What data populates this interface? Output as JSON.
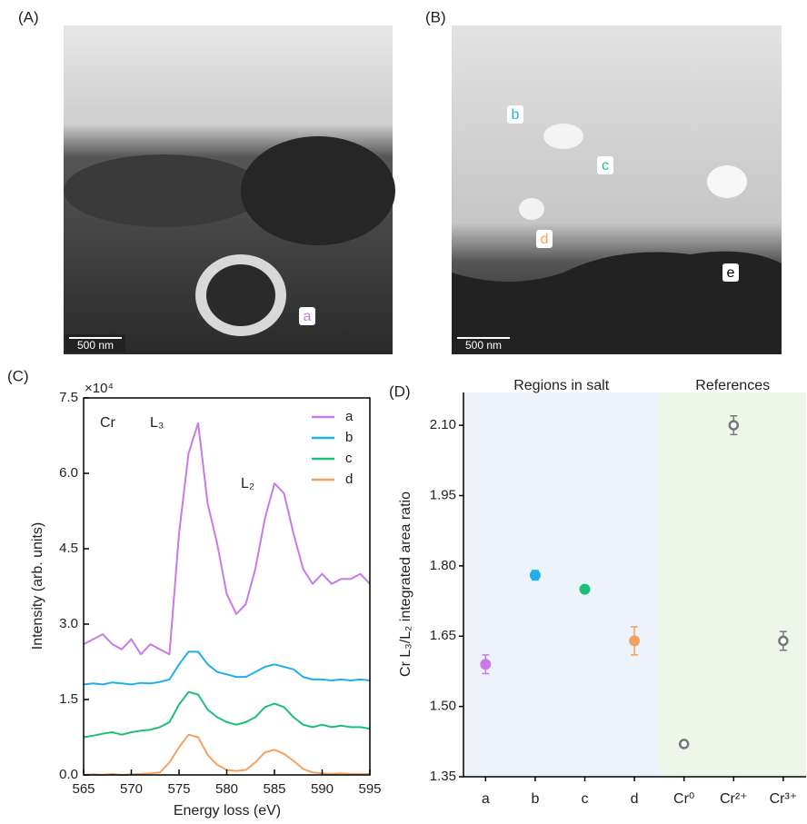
{
  "panels": {
    "A": {
      "label": "(A)",
      "scale_bar": "500 nm",
      "regions": [
        "a"
      ]
    },
    "B": {
      "label": "(B)",
      "scale_bar": "500 nm",
      "regions": [
        "b",
        "c",
        "d",
        "e"
      ]
    }
  },
  "chart_data": [
    {
      "type": "line",
      "panel_label": "(C)",
      "multiplier": "×10⁴",
      "xlabel": "Energy loss (eV)",
      "ylabel": "Intensity (arb. units)",
      "annotations": [
        "Cr",
        "L₃",
        "L₂"
      ],
      "x": [
        565,
        566,
        567,
        568,
        569,
        570,
        571,
        572,
        573,
        574,
        575,
        576,
        577,
        578,
        579,
        580,
        581,
        582,
        583,
        584,
        585,
        586,
        587,
        588,
        589,
        590,
        591,
        592,
        593,
        594,
        595
      ],
      "xlim": [
        565,
        595
      ],
      "xticks": [
        565,
        570,
        575,
        580,
        585,
        590,
        595
      ],
      "ylim": [
        0,
        7.5
      ],
      "yticks": [
        {
          "value": 0,
          "label": "0.0"
        },
        1.5,
        {
          "value": 3,
          "label": "3.0"
        },
        4.5,
        {
          "value": 6,
          "label": "6.0"
        },
        7.5
      ],
      "legend": "upper right",
      "series": [
        {
          "name": "a",
          "color": "#c77ae8",
          "values": [
            2.6,
            2.7,
            2.8,
            2.6,
            2.5,
            2.7,
            2.4,
            2.6,
            2.5,
            2.4,
            4.8,
            6.4,
            7.0,
            5.4,
            4.6,
            3.6,
            3.2,
            3.4,
            4.1,
            5.1,
            5.8,
            5.6,
            4.8,
            4.1,
            3.8,
            4.0,
            3.8,
            3.9,
            3.9,
            4.0,
            3.8
          ]
        },
        {
          "name": "b",
          "color": "#1fb0ec",
          "values": [
            1.8,
            1.82,
            1.8,
            1.84,
            1.82,
            1.8,
            1.83,
            1.82,
            1.85,
            1.9,
            2.2,
            2.45,
            2.45,
            2.2,
            2.05,
            2.0,
            1.95,
            1.95,
            2.05,
            2.15,
            2.2,
            2.15,
            2.1,
            1.95,
            1.9,
            1.9,
            1.88,
            1.9,
            1.88,
            1.9,
            1.88
          ]
        },
        {
          "name": "c",
          "color": "#1dbf78",
          "values": [
            0.75,
            0.78,
            0.82,
            0.85,
            0.8,
            0.85,
            0.88,
            0.9,
            0.95,
            1.05,
            1.4,
            1.65,
            1.6,
            1.3,
            1.15,
            1.05,
            1.0,
            1.05,
            1.15,
            1.35,
            1.42,
            1.35,
            1.15,
            1.0,
            0.95,
            1.0,
            0.95,
            0.98,
            0.95,
            0.95,
            0.92
          ]
        },
        {
          "name": "d",
          "color": "#f4a263",
          "values": [
            0,
            0.01,
            0,
            0.02,
            0,
            0.01,
            0.02,
            0.03,
            0.05,
            0.25,
            0.55,
            0.8,
            0.75,
            0.4,
            0.2,
            0.1,
            0.08,
            0.1,
            0.25,
            0.45,
            0.5,
            0.42,
            0.28,
            0.12,
            0.05,
            0.03,
            0.02,
            0.03,
            0.02,
            0.02,
            0.02
          ]
        }
      ]
    },
    {
      "type": "errorbar",
      "panel_label": "(D)",
      "ylabel": "Cr L₃/L₂ integrated area ratio",
      "groups": [
        "Regions in salt",
        "References"
      ],
      "categories": [
        "a",
        "b",
        "c",
        "d",
        "Cr⁰",
        "Cr²⁺",
        "Cr³⁺"
      ],
      "values": [
        1.59,
        1.78,
        1.75,
        1.64,
        1.42,
        2.1,
        1.64
      ],
      "errors": [
        0.02,
        0.01,
        0.005,
        0.03,
        0.005,
        0.02,
        0.02
      ],
      "colors": [
        "#c77ae8",
        "#1fb0ec",
        "#1dbf78",
        "#f4a263",
        "#777777",
        "#777777",
        "#777777"
      ],
      "filled": [
        true,
        true,
        true,
        true,
        false,
        false,
        false
      ],
      "ylim": [
        1.35,
        2.17
      ],
      "yticks": [
        1.35,
        {
          "value": 1.5,
          "label": "1.50"
        },
        1.65,
        {
          "value": 1.8,
          "label": "1.80"
        },
        1.95,
        {
          "value": 2.1,
          "label": "2.10"
        }
      ]
    }
  ]
}
